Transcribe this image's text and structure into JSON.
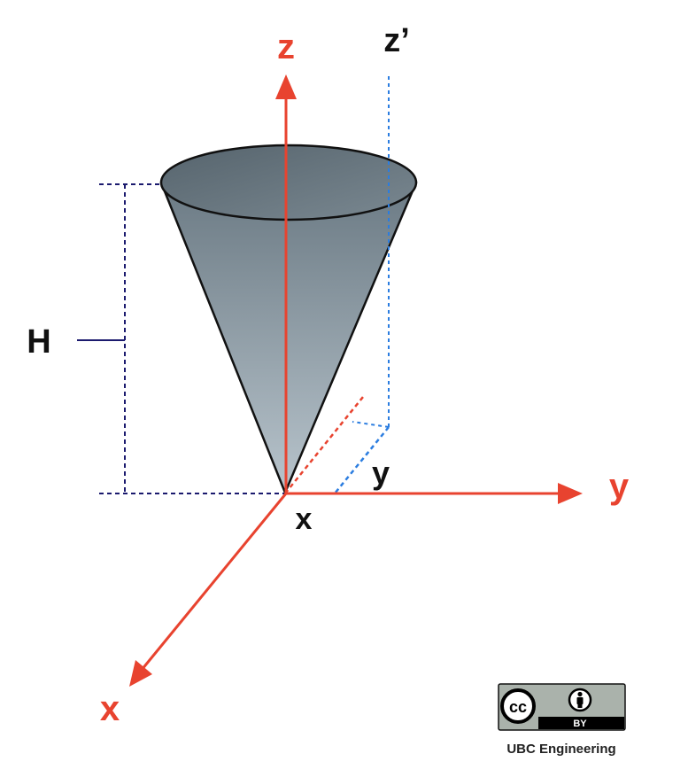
{
  "labels": {
    "z_axis": "z",
    "z_prime": "z’",
    "y_axis": "y",
    "x_axis": "x",
    "height": "H",
    "y_distance": "y",
    "x_origin": "x"
  },
  "license": {
    "cc": "cc",
    "by": "BY",
    "credit": "UBC Engineering"
  },
  "colors": {
    "axis": "#e8432f",
    "dim_navy": "#1b1a6e",
    "dashed_blue": "#2b7de0",
    "cone_outline": "#111111",
    "cone_fill_top": "#6b7a84",
    "cone_fill_bottom": "#b8c4cc",
    "label_dark": "#111111"
  }
}
